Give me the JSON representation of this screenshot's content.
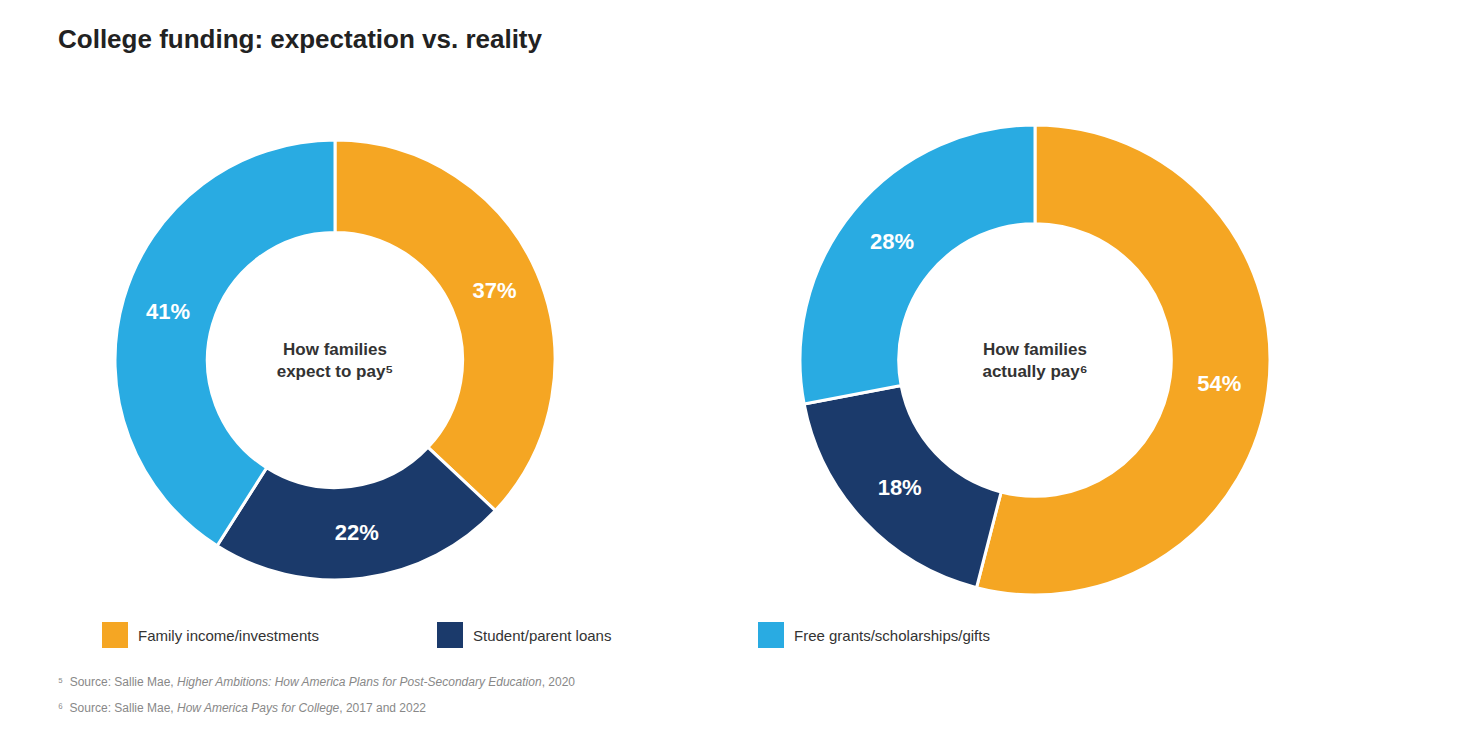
{
  "title": "College funding: expectation vs.  reality",
  "annotations": [
    [
      "⁵  Source: Sallie Mae, ",
      "Higher Ambitions: How America Plans for Post-Secondary Education",
      ", 2020"
    ],
    [
      "⁶  Source: Sallie Mae, ",
      "How America Pays for College",
      ", 2017 and 2022"
    ]
  ],
  "chart_data": [
    {
      "type": "donut",
      "title": "How families\nexpect to pay⁵",
      "categories": [
        "Family income/investments",
        "Student/parent loans",
        "Free grants/scholarships/gifts"
      ],
      "values": [
        37,
        22,
        41
      ],
      "value_labels": [
        "37%",
        "22%",
        "41%"
      ],
      "colors": [
        "#f5a623",
        "#1b3a6b",
        "#29abe2"
      ],
      "data_labels": true,
      "legend": "bottom"
    },
    {
      "type": "donut",
      "title": "How families\nactually pay⁶",
      "values": [
        54,
        18,
        28
      ],
      "value_labels": [
        "54%",
        "18%",
        "28%"
      ],
      "colors": [
        "#f5a623",
        "#1b3a6b",
        "#29abe2"
      ],
      "data_labels": true
    }
  ]
}
